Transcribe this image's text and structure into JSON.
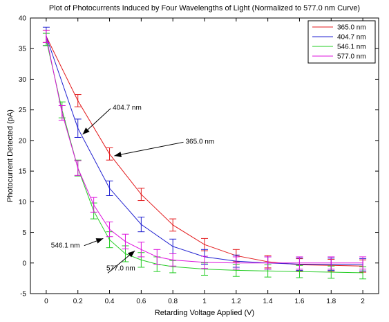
{
  "chart_data": {
    "type": "line",
    "title": "Plot of Photocurrents Induced by Four Wavelengths of Light (Normalized to 577.0 nm Curve)",
    "xlabel": "Retarding Voltage Applied (V)",
    "ylabel": "Photocurrent Detected (pA)",
    "xlim": [
      -0.1,
      2.1
    ],
    "ylim": [
      -5,
      40
    ],
    "xticks": [
      "0",
      "0.2",
      "0.4",
      "0.6",
      "0.8",
      "1",
      "1.2",
      "1.4",
      "1.6",
      "1.8",
      "2"
    ],
    "yticks": [
      "-5",
      "0",
      "5",
      "10",
      "15",
      "20",
      "25",
      "30",
      "35",
      "40"
    ],
    "grid": false,
    "legend_position": "top-right",
    "series": [
      {
        "name": "365.0 nm",
        "color": "#e31a1c",
        "x": [
          0,
          0.2,
          0.4,
          0.6,
          0.8,
          1.0,
          1.2,
          1.4,
          1.6,
          1.8,
          2.0
        ],
        "y": [
          37.0,
          26.5,
          17.8,
          11.2,
          6.2,
          3.0,
          1.2,
          0.2,
          -0.3,
          -0.4,
          -0.5
        ],
        "err": [
          1.0,
          1.0,
          1.0,
          1.0,
          1.0,
          1.0,
          1.0,
          1.0,
          1.0,
          1.0,
          1.0
        ]
      },
      {
        "name": "404.7 nm",
        "color": "#1f1fd0",
        "x": [
          0,
          0.2,
          0.4,
          0.6,
          0.8,
          1.0,
          1.2,
          1.4,
          1.6,
          1.8,
          2.0
        ],
        "y": [
          37.0,
          22.0,
          12.2,
          6.3,
          2.7,
          1.0,
          0.3,
          0.0,
          -0.2,
          -0.2,
          -0.3
        ],
        "err": [
          1.5,
          1.5,
          1.2,
          1.2,
          1.2,
          1.2,
          1.0,
          1.0,
          1.0,
          1.0,
          1.0
        ]
      },
      {
        "name": "546.1 nm",
        "color": "#22cc22",
        "x": [
          0,
          0.1,
          0.2,
          0.3,
          0.4,
          0.5,
          0.6,
          0.7,
          0.8,
          1.0,
          1.2,
          1.4,
          1.6,
          1.8,
          2.0
        ],
        "y": [
          36.5,
          25.0,
          15.5,
          8.5,
          3.8,
          1.5,
          0.5,
          -0.2,
          -0.6,
          -1.0,
          -1.2,
          -1.3,
          -1.4,
          -1.5,
          -1.6
        ],
        "err": [
          1.0,
          1.3,
          1.3,
          1.3,
          1.3,
          1.3,
          1.2,
          1.2,
          1.0,
          1.0,
          1.0,
          1.0,
          1.0,
          1.0,
          1.0
        ]
      },
      {
        "name": "577.0 nm",
        "color": "#dd11dd",
        "x": [
          0,
          0.1,
          0.2,
          0.3,
          0.4,
          0.5,
          0.6,
          0.7,
          0.8,
          1.0,
          1.2,
          1.4,
          1.6,
          1.8,
          2.0
        ],
        "y": [
          37.0,
          24.5,
          15.5,
          9.5,
          5.5,
          3.5,
          2.2,
          1.0,
          0.5,
          0.1,
          0.0,
          0.0,
          0.0,
          0.0,
          0.0
        ],
        "err": [
          1.0,
          1.2,
          1.2,
          1.2,
          1.2,
          1.2,
          1.2,
          1.2,
          1.0,
          1.0,
          1.0,
          1.0,
          1.0,
          1.0,
          1.0
        ]
      }
    ],
    "annotations": [
      {
        "text": "404.7 nm",
        "text_at": [
          0.42,
          25.0
        ],
        "arrow_to": [
          0.23,
          21.0
        ]
      },
      {
        "text": "365.0 nm",
        "text_at": [
          0.88,
          19.5
        ],
        "arrow_to": [
          0.43,
          17.5
        ]
      },
      {
        "text": "546.1 nm",
        "text_at": [
          0.03,
          2.5
        ],
        "arrow_to": [
          0.36,
          4.0
        ]
      },
      {
        "text": "577.0 nm",
        "text_at": [
          0.38,
          -1.2
        ],
        "arrow_to": [
          0.56,
          2.0
        ]
      }
    ]
  }
}
